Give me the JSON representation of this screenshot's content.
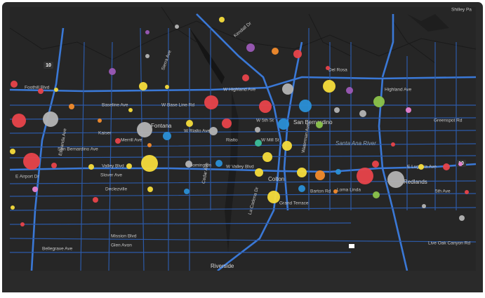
{
  "map": {
    "labels": [
      "Foothill Blvd",
      "Baseline Ave",
      "W Base Line Rd",
      "W Highland Ave",
      "Highland Ave",
      "W Rialto Ave",
      "W 5th St",
      "Merrill Ave",
      "San Bernardino Ave",
      "Valley Blvd",
      "W Valley Blvd",
      "E Lugonia Ave",
      "Slover Ave",
      "E Airport Dr",
      "W Mill St",
      "Barton Rd",
      "Grand Terrace",
      "Live Oak Canyon Rd",
      "Riverside",
      "Colton",
      "San Bernardino",
      "Santa Ana River",
      "Fontana",
      "Rialto",
      "Bloomington",
      "Redlands",
      "Loma Linda",
      "Kaiser",
      "Del Rosa",
      "Greenspot Rd",
      "Sierra Ave",
      "Cedar Ave",
      "La Cadena Dr",
      "Waterman Ave",
      "Kendall Dr",
      "Mission Blvd",
      "Etiwanda Ave",
      "Bellegrave Ave",
      "Glen Avon",
      "Shilley Pa",
      "Declezville",
      "5th Ave"
    ],
    "shields": [
      "10",
      "10"
    ]
  }
}
